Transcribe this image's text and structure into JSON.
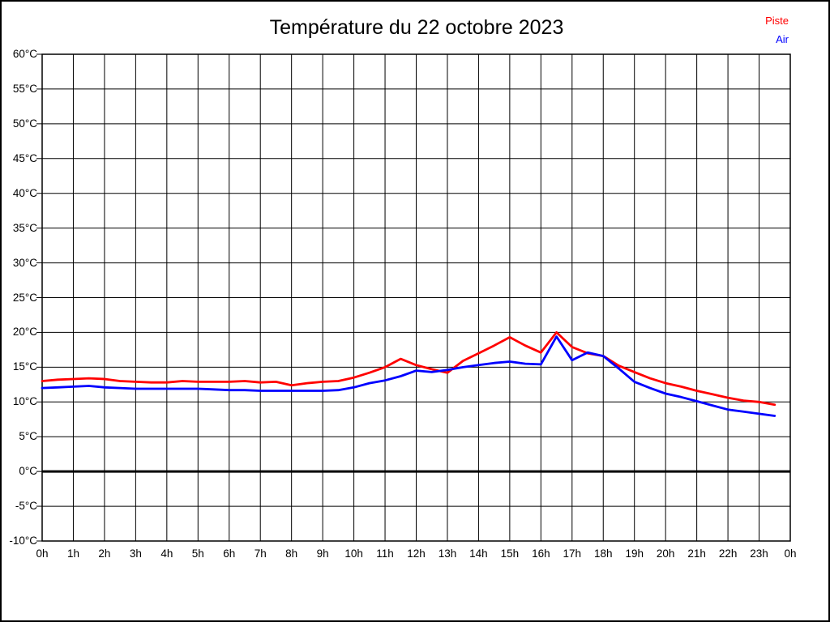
{
  "title": "Température du 22 octobre 2023",
  "legend": [
    {
      "label": "Piste",
      "color": "#ff0000"
    },
    {
      "label": "Air",
      "color": "#0000ff"
    }
  ],
  "colors": {
    "grid": "#000000",
    "frame": "#000000",
    "zero_line": "#000000",
    "background": "#ffffff"
  },
  "chart_data": {
    "type": "line",
    "title": "Température du 22 octobre 2023",
    "xlabel": "",
    "ylabel": "",
    "xlim": [
      0,
      24
    ],
    "ylim": [
      -10,
      60
    ],
    "grid": true,
    "zero_line_bold": true,
    "legend_position": "top-right",
    "x_tick_labels": [
      "0h",
      "1h",
      "2h",
      "3h",
      "4h",
      "5h",
      "6h",
      "7h",
      "8h",
      "9h",
      "10h",
      "11h",
      "12h",
      "13h",
      "14h",
      "15h",
      "16h",
      "17h",
      "18h",
      "19h",
      "20h",
      "21h",
      "22h",
      "23h",
      "0h"
    ],
    "y_tick_labels": [
      "60°C",
      "55°C",
      "50°C",
      "45°C",
      "40°C",
      "35°C",
      "30°C",
      "25°C",
      "20°C",
      "15°C",
      "10°C",
      "5°C",
      "0°C",
      "-5°C",
      "-10°C"
    ],
    "y_tick_values": [
      60,
      55,
      50,
      45,
      40,
      35,
      30,
      25,
      20,
      15,
      10,
      5,
      0,
      -5,
      -10
    ],
    "x_start": 0,
    "x_step": 0.5,
    "series": [
      {
        "name": "Piste",
        "color": "#ff0000",
        "values": [
          13.0,
          13.2,
          13.3,
          13.4,
          13.3,
          13.0,
          12.9,
          12.8,
          12.8,
          13.0,
          12.9,
          12.9,
          12.9,
          13.0,
          12.8,
          12.9,
          12.4,
          12.7,
          12.9,
          13.0,
          13.5,
          14.2,
          15.0,
          16.2,
          15.3,
          14.7,
          14.2,
          15.9,
          17.0,
          18.1,
          19.3,
          18.1,
          17.1,
          20.0,
          17.9,
          17.0,
          16.6,
          15.2,
          14.3,
          13.4,
          12.7,
          12.2,
          11.6,
          11.1,
          10.6,
          10.2,
          10.0,
          9.6
        ]
      },
      {
        "name": "Air",
        "color": "#0000ff",
        "values": [
          12.0,
          12.1,
          12.2,
          12.3,
          12.1,
          12.0,
          11.9,
          11.9,
          11.9,
          11.9,
          11.9,
          11.8,
          11.7,
          11.7,
          11.6,
          11.6,
          11.6,
          11.6,
          11.6,
          11.7,
          12.1,
          12.7,
          13.1,
          13.7,
          14.5,
          14.3,
          14.6,
          15.0,
          15.3,
          15.6,
          15.8,
          15.5,
          15.4,
          19.4,
          16.0,
          17.1,
          16.6,
          14.8,
          12.9,
          12.0,
          11.2,
          10.7,
          10.1,
          9.5,
          8.9,
          8.6,
          8.3,
          8.0
        ]
      }
    ]
  }
}
